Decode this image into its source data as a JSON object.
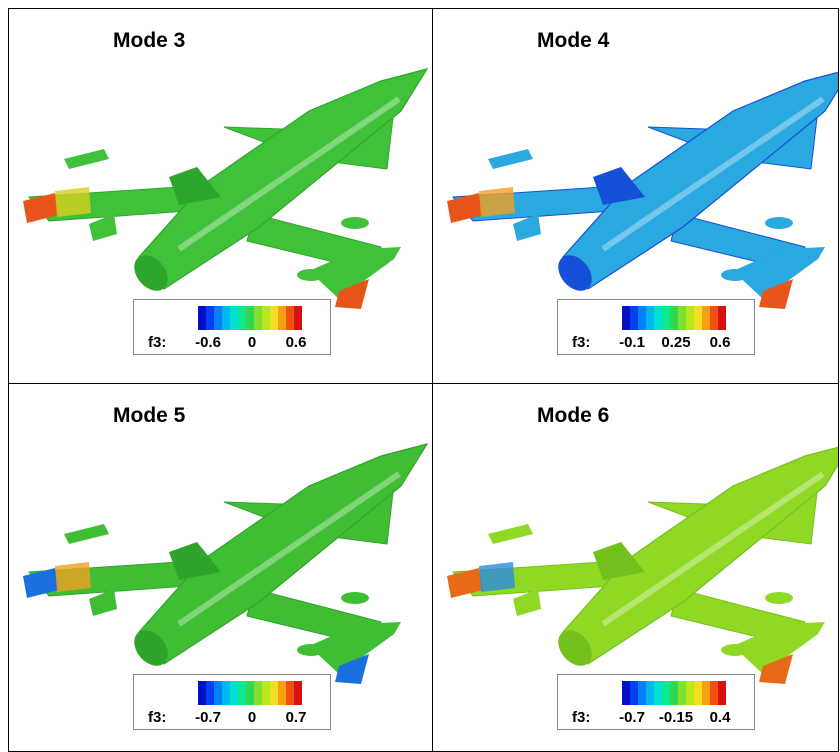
{
  "panels": [
    {
      "title": "Mode 3",
      "legend": {
        "label": "f3:",
        "ticks": [
          "-0.6",
          "0",
          "0.6"
        ]
      }
    },
    {
      "title": "Mode 4",
      "legend": {
        "label": "f3:",
        "ticks": [
          "-0.1",
          "0.25",
          "0.6"
        ]
      }
    },
    {
      "title": "Mode 5",
      "legend": {
        "label": "f3:",
        "ticks": [
          "-0.7",
          "0",
          "0.7"
        ]
      }
    },
    {
      "title": "Mode 6",
      "legend": {
        "label": "f3:",
        "ticks": [
          "-0.7",
          "-0.15",
          "0.4"
        ]
      }
    }
  ]
}
